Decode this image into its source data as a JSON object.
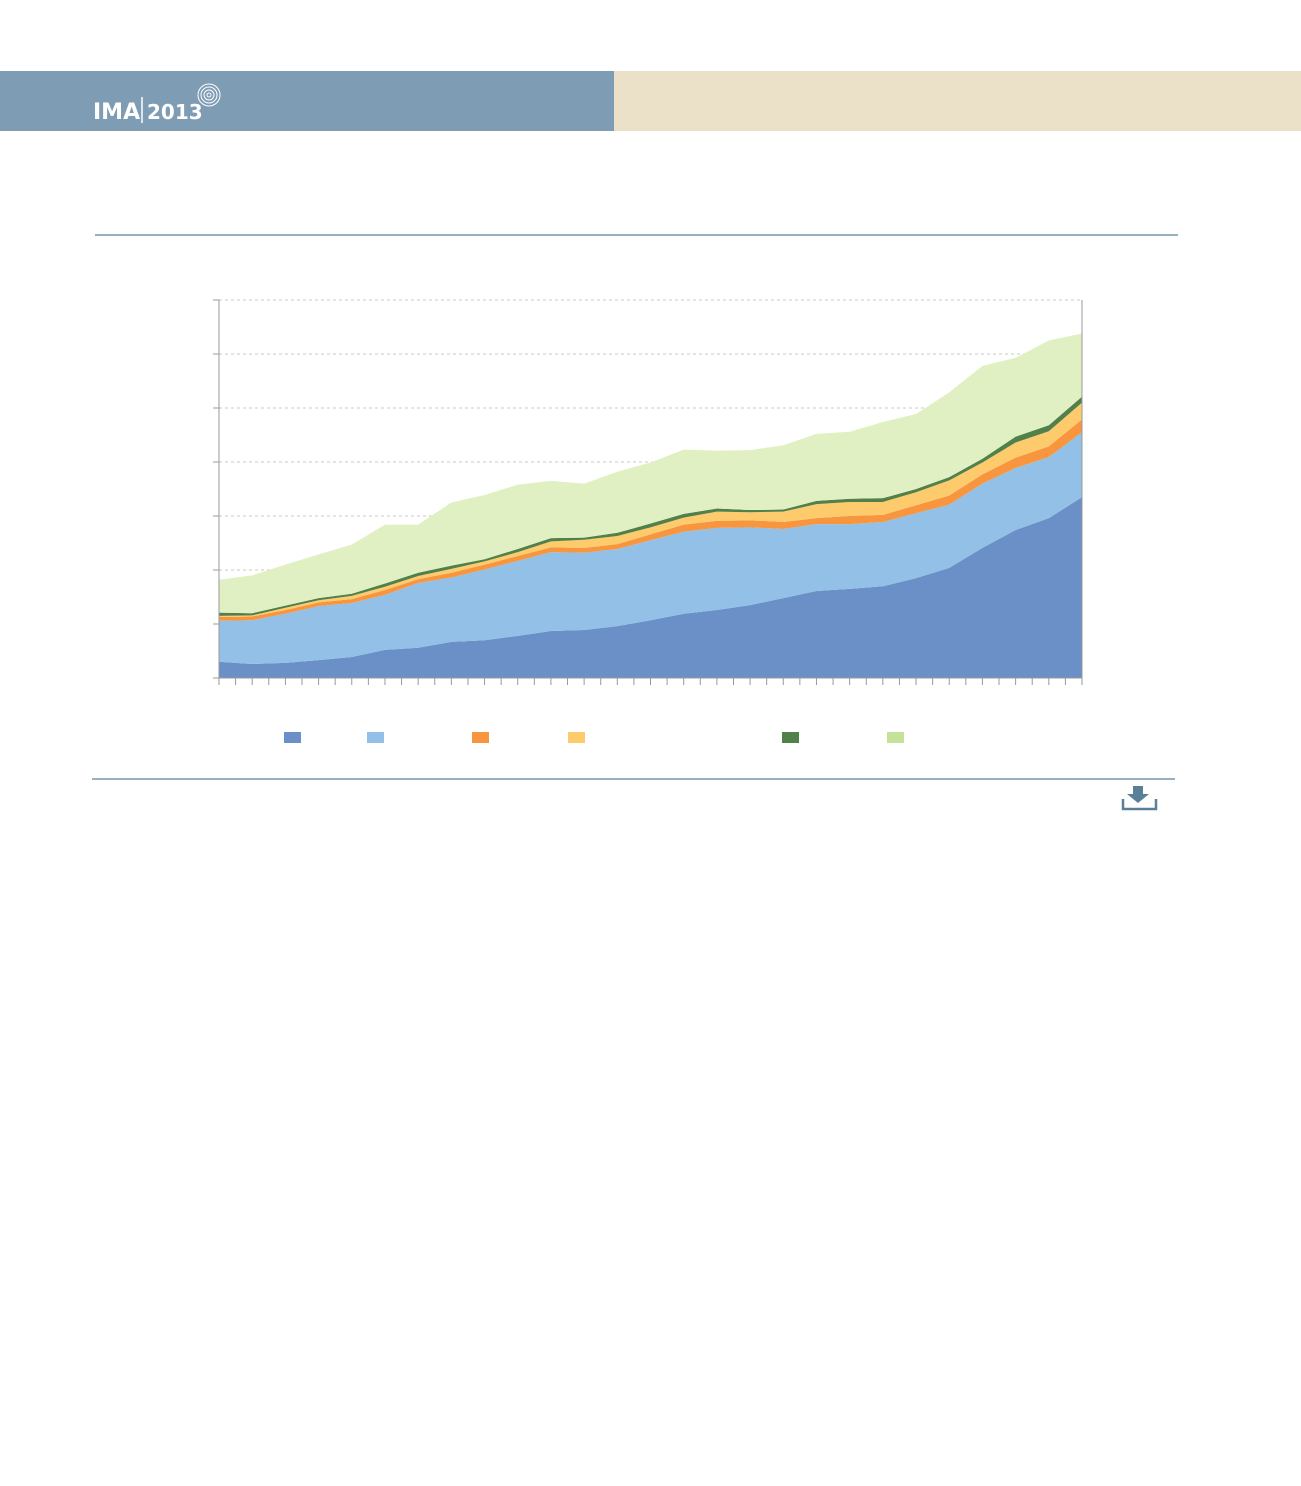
{
  "header": {
    "logo": "IMA",
    "year": "2013"
  },
  "chart_data": {
    "type": "area",
    "stacked": true,
    "categories": [
      null,
      null,
      null,
      null,
      null,
      null,
      null,
      null,
      null,
      null,
      null,
      null,
      null,
      null,
      null,
      null,
      null,
      null,
      null,
      null,
      null,
      null,
      null,
      null,
      null,
      null,
      null
    ],
    "series": [
      {
        "color": "#6b90c8",
        "values": [
          0.3,
          0.26,
          0.28,
          0.33,
          0.39,
          0.52,
          0.56,
          0.67,
          0.7,
          0.78,
          0.87,
          0.89,
          0.96,
          1.07,
          1.19,
          1.26,
          1.35,
          1.48,
          1.61,
          1.65,
          1.7,
          1.85,
          2.04,
          2.41,
          2.74,
          2.96,
          3.35
        ]
      },
      {
        "color": "#93c0e6",
        "values": [
          0.76,
          0.81,
          0.91,
          1.0,
          1.0,
          1.02,
          1.2,
          1.19,
          1.31,
          1.39,
          1.46,
          1.43,
          1.43,
          1.48,
          1.52,
          1.52,
          1.44,
          1.28,
          1.24,
          1.2,
          1.19,
          1.2,
          1.17,
          1.19,
          1.15,
          1.13,
          1.2
        ]
      },
      {
        "color": "#f7963f",
        "values": [
          0.07,
          0.07,
          0.07,
          0.07,
          0.07,
          0.09,
          0.07,
          0.09,
          0.09,
          0.09,
          0.09,
          0.09,
          0.09,
          0.11,
          0.13,
          0.13,
          0.13,
          0.13,
          0.11,
          0.15,
          0.13,
          0.15,
          0.17,
          0.17,
          0.19,
          0.2,
          0.24
        ]
      },
      {
        "color": "#fdca6c",
        "values": [
          0.02,
          0.02,
          0.04,
          0.04,
          0.06,
          0.06,
          0.06,
          0.07,
          0.06,
          0.07,
          0.11,
          0.15,
          0.15,
          0.13,
          0.13,
          0.17,
          0.15,
          0.19,
          0.26,
          0.26,
          0.24,
          0.24,
          0.28,
          0.22,
          0.28,
          0.28,
          0.31
        ]
      },
      {
        "color": "#52804a",
        "values": [
          0.06,
          0.04,
          0.04,
          0.04,
          0.04,
          0.06,
          0.06,
          0.06,
          0.04,
          0.06,
          0.06,
          0.04,
          0.06,
          0.07,
          0.07,
          0.06,
          0.04,
          0.04,
          0.06,
          0.06,
          0.07,
          0.06,
          0.06,
          0.07,
          0.11,
          0.11,
          0.11
        ]
      },
      {
        "color": "#e1f0c3",
        "values": [
          0.61,
          0.7,
          0.76,
          0.81,
          0.91,
          1.09,
          0.89,
          1.17,
          1.19,
          1.19,
          1.06,
          1.0,
          1.13,
          1.13,
          1.19,
          1.07,
          1.11,
          1.19,
          1.24,
          1.24,
          1.41,
          1.39,
          1.57,
          1.72,
          1.46,
          1.57,
          1.17
        ]
      }
    ],
    "legend_swatch_colors": [
      "#6b90c8",
      "#93c0e6",
      "#f7963f",
      "#fdca6c",
      "#52804a",
      "#c4e29a"
    ],
    "ylim": [
      0,
      7
    ],
    "yticks": [
      0,
      1,
      2,
      3,
      4,
      5,
      6,
      7
    ],
    "grid": true
  }
}
